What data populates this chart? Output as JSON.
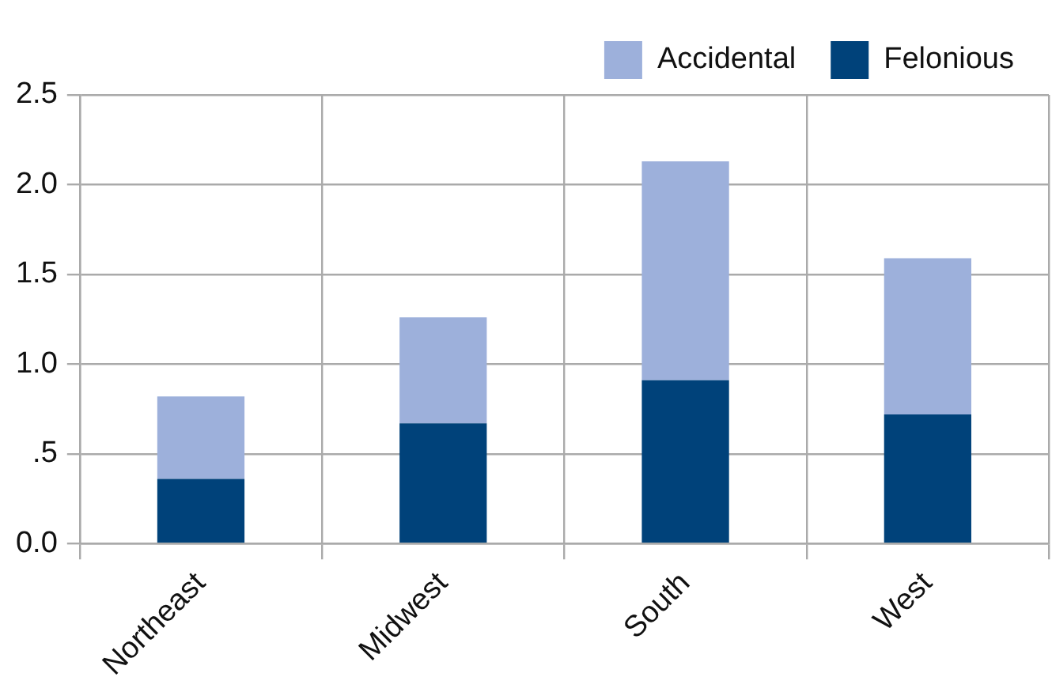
{
  "chart_data": {
    "type": "bar",
    "stacked": true,
    "categories": [
      "Northeast",
      "Midwest",
      "South",
      "West"
    ],
    "series": [
      {
        "name": "Felonious",
        "color": "#00427a",
        "values": [
          0.36,
          0.67,
          0.91,
          0.72
        ]
      },
      {
        "name": "Accidental",
        "color": "#9db0db",
        "values": [
          0.46,
          0.59,
          1.22,
          0.87
        ]
      }
    ],
    "ylim": [
      0,
      2.5
    ],
    "yticks": [
      {
        "value": 0,
        "label": "0.0"
      },
      {
        "value": 0.5,
        "label": ".5"
      },
      {
        "value": 1,
        "label": "1.0"
      },
      {
        "value": 1.5,
        "label": "1.5"
      },
      {
        "value": 2,
        "label": "2.0"
      },
      2.5
    ],
    "grid": true,
    "legend": "top right"
  }
}
